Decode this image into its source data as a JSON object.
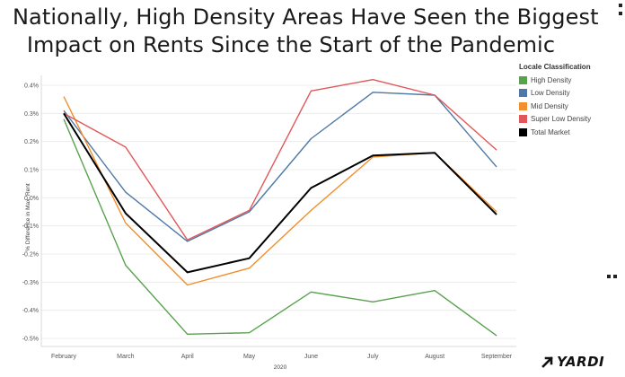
{
  "title_line1": "Nationally, High Density Areas Have Seen the Biggest",
  "title_line2": "Impact on Rents Since the Start of the Pandemic",
  "brand": "YARDI",
  "legend": {
    "title": "Locale Classification"
  },
  "chart_data": {
    "type": "line",
    "xlabel": "2020",
    "ylabel": "% Difference in Max. Rent",
    "categories": [
      "February",
      "March",
      "April",
      "May",
      "June",
      "July",
      "August",
      "September"
    ],
    "y_ticks": [
      "0.4%",
      "0.3%",
      "0.2%",
      "0.1%",
      "0.0%",
      "-0.1%",
      "-0.2%",
      "-0.3%",
      "-0.4%",
      "-0.5%"
    ],
    "ylim": [
      -0.5,
      0.4
    ],
    "legend_position": "right",
    "series": [
      {
        "name": "High Density",
        "color": "#59a14f",
        "values": [
          0.28,
          -0.24,
          -0.485,
          -0.48,
          -0.335,
          -0.37,
          -0.33,
          -0.49
        ]
      },
      {
        "name": "Low Density",
        "color": "#4e79a7",
        "values": [
          0.31,
          0.02,
          -0.155,
          -0.05,
          0.21,
          0.375,
          0.365,
          0.11
        ]
      },
      {
        "name": "Mid Density",
        "color": "#f28e2b",
        "values": [
          0.36,
          -0.09,
          -0.31,
          -0.25,
          -0.045,
          0.145,
          0.16,
          -0.05
        ]
      },
      {
        "name": "Super Low Density",
        "color": "#e15759",
        "values": [
          0.3,
          0.18,
          -0.15,
          -0.045,
          0.38,
          0.42,
          0.365,
          0.17
        ]
      },
      {
        "name": "Total Market",
        "color": "#000000",
        "values": [
          0.3,
          -0.055,
          -0.265,
          -0.215,
          0.035,
          0.15,
          0.16,
          -0.06
        ]
      }
    ]
  }
}
